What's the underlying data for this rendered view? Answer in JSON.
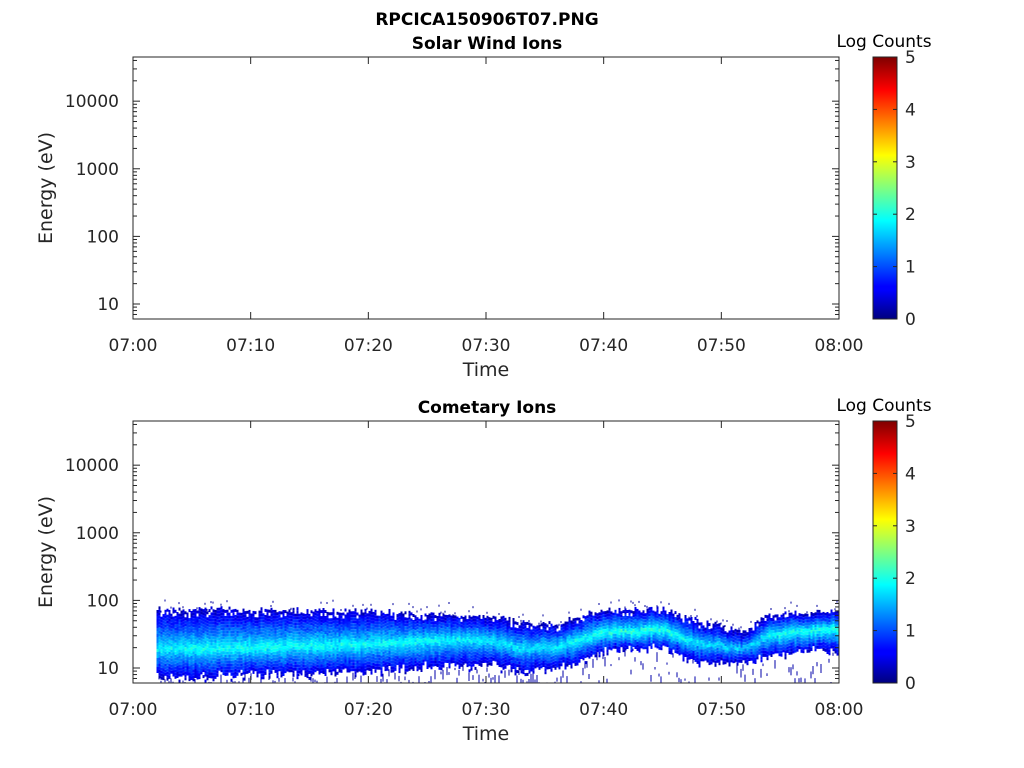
{
  "figure_title": "RPCICA150906T07.PNG",
  "chart_data": [
    {
      "type": "heatmap",
      "title": "Solar Wind Ions",
      "xlabel": "Time",
      "ylabel": "Energy (eV)",
      "x_ticks": [
        "07:00",
        "07:10",
        "07:20",
        "07:30",
        "07:40",
        "07:50",
        "08:00"
      ],
      "xlim": [
        "07:00",
        "08:00"
      ],
      "y_scale": "log",
      "y_ticks": [
        10,
        100,
        1000,
        10000
      ],
      "y_tick_labels": [
        "10",
        "100",
        "1000",
        "10000"
      ],
      "ylim": [
        6,
        45000
      ],
      "colorbar": {
        "label": "Log Counts",
        "range": [
          0,
          5
        ],
        "ticks": [
          "0",
          "1",
          "2",
          "3",
          "4",
          "5"
        ],
        "colormap": "jet"
      },
      "series": []
    },
    {
      "type": "heatmap",
      "title": "Cometary Ions",
      "xlabel": "Time",
      "ylabel": "Energy (eV)",
      "x_ticks": [
        "07:00",
        "07:10",
        "07:20",
        "07:30",
        "07:40",
        "07:50",
        "08:00"
      ],
      "xlim": [
        "07:00",
        "08:00"
      ],
      "y_scale": "log",
      "y_ticks": [
        10,
        100,
        1000,
        10000
      ],
      "y_tick_labels": [
        "10",
        "100",
        "1000",
        "10000"
      ],
      "ylim": [
        6,
        45000
      ],
      "colorbar": {
        "label": "Log Counts",
        "range": [
          0,
          5
        ],
        "ticks": [
          "0",
          "1",
          "2",
          "3",
          "4",
          "5"
        ],
        "colormap": "jet"
      },
      "data_start": "07:02",
      "band_profile": [
        {
          "time": "07:02",
          "center_eV": 20,
          "low_eV": 7,
          "high_eV": 75,
          "peak_log_counts": 1.9
        },
        {
          "time": "07:06",
          "center_eV": 20,
          "low_eV": 7,
          "high_eV": 75,
          "peak_log_counts": 2.0
        },
        {
          "time": "07:10",
          "center_eV": 21,
          "low_eV": 8,
          "high_eV": 75,
          "peak_log_counts": 2.0
        },
        {
          "time": "07:15",
          "center_eV": 22,
          "low_eV": 8,
          "high_eV": 72,
          "peak_log_counts": 2.0
        },
        {
          "time": "07:20",
          "center_eV": 23,
          "low_eV": 9,
          "high_eV": 70,
          "peak_log_counts": 2.0
        },
        {
          "time": "07:25",
          "center_eV": 26,
          "low_eV": 10,
          "high_eV": 65,
          "peak_log_counts": 2.0
        },
        {
          "time": "07:30",
          "center_eV": 28,
          "low_eV": 11,
          "high_eV": 60,
          "peak_log_counts": 1.9
        },
        {
          "time": "07:33",
          "center_eV": 20,
          "low_eV": 9,
          "high_eV": 50,
          "peak_log_counts": 1.8
        },
        {
          "time": "07:36",
          "center_eV": 22,
          "low_eV": 10,
          "high_eV": 45,
          "peak_log_counts": 1.9
        },
        {
          "time": "07:38",
          "center_eV": 28,
          "low_eV": 12,
          "high_eV": 60,
          "peak_log_counts": 2.0
        },
        {
          "time": "07:40",
          "center_eV": 35,
          "low_eV": 18,
          "high_eV": 75,
          "peak_log_counts": 2.1
        },
        {
          "time": "07:45",
          "center_eV": 38,
          "low_eV": 20,
          "high_eV": 75,
          "peak_log_counts": 2.2
        },
        {
          "time": "07:48",
          "center_eV": 24,
          "low_eV": 12,
          "high_eV": 50,
          "peak_log_counts": 1.8
        },
        {
          "time": "07:52",
          "center_eV": 20,
          "low_eV": 12,
          "high_eV": 35,
          "peak_log_counts": 1.7
        },
        {
          "time": "07:54",
          "center_eV": 32,
          "low_eV": 15,
          "high_eV": 65,
          "peak_log_counts": 2.0
        },
        {
          "time": "07:58",
          "center_eV": 38,
          "low_eV": 18,
          "high_eV": 70,
          "peak_log_counts": 2.1
        },
        {
          "time": "08:00",
          "center_eV": 40,
          "low_eV": 18,
          "high_eV": 70,
          "peak_log_counts": 2.1
        }
      ]
    }
  ]
}
